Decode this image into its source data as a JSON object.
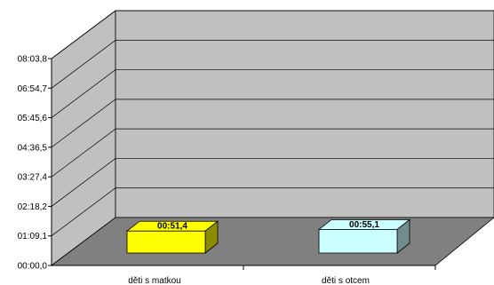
{
  "chart_data": {
    "type": "bar",
    "categories": [
      "děti s matkou",
      "děti s otcem"
    ],
    "values_seconds": [
      51.4,
      55.1
    ],
    "data_labels": [
      "00:51,4",
      "00:55,1"
    ],
    "bar_colors": [
      "#ffff00",
      "#ccffff"
    ],
    "y_ticks": [
      "00:00,0",
      "01:09,1",
      "02:18,2",
      "03:27,4",
      "04:36,5",
      "05:45,6",
      "06:54,7",
      "08:03,8"
    ],
    "ylim_seconds": [
      0,
      483.8
    ],
    "grid": true,
    "three_d": true,
    "legend": "none",
    "colors": {
      "walls": "#c0c0c0",
      "floor": "#808080",
      "grid": "#000000"
    }
  }
}
